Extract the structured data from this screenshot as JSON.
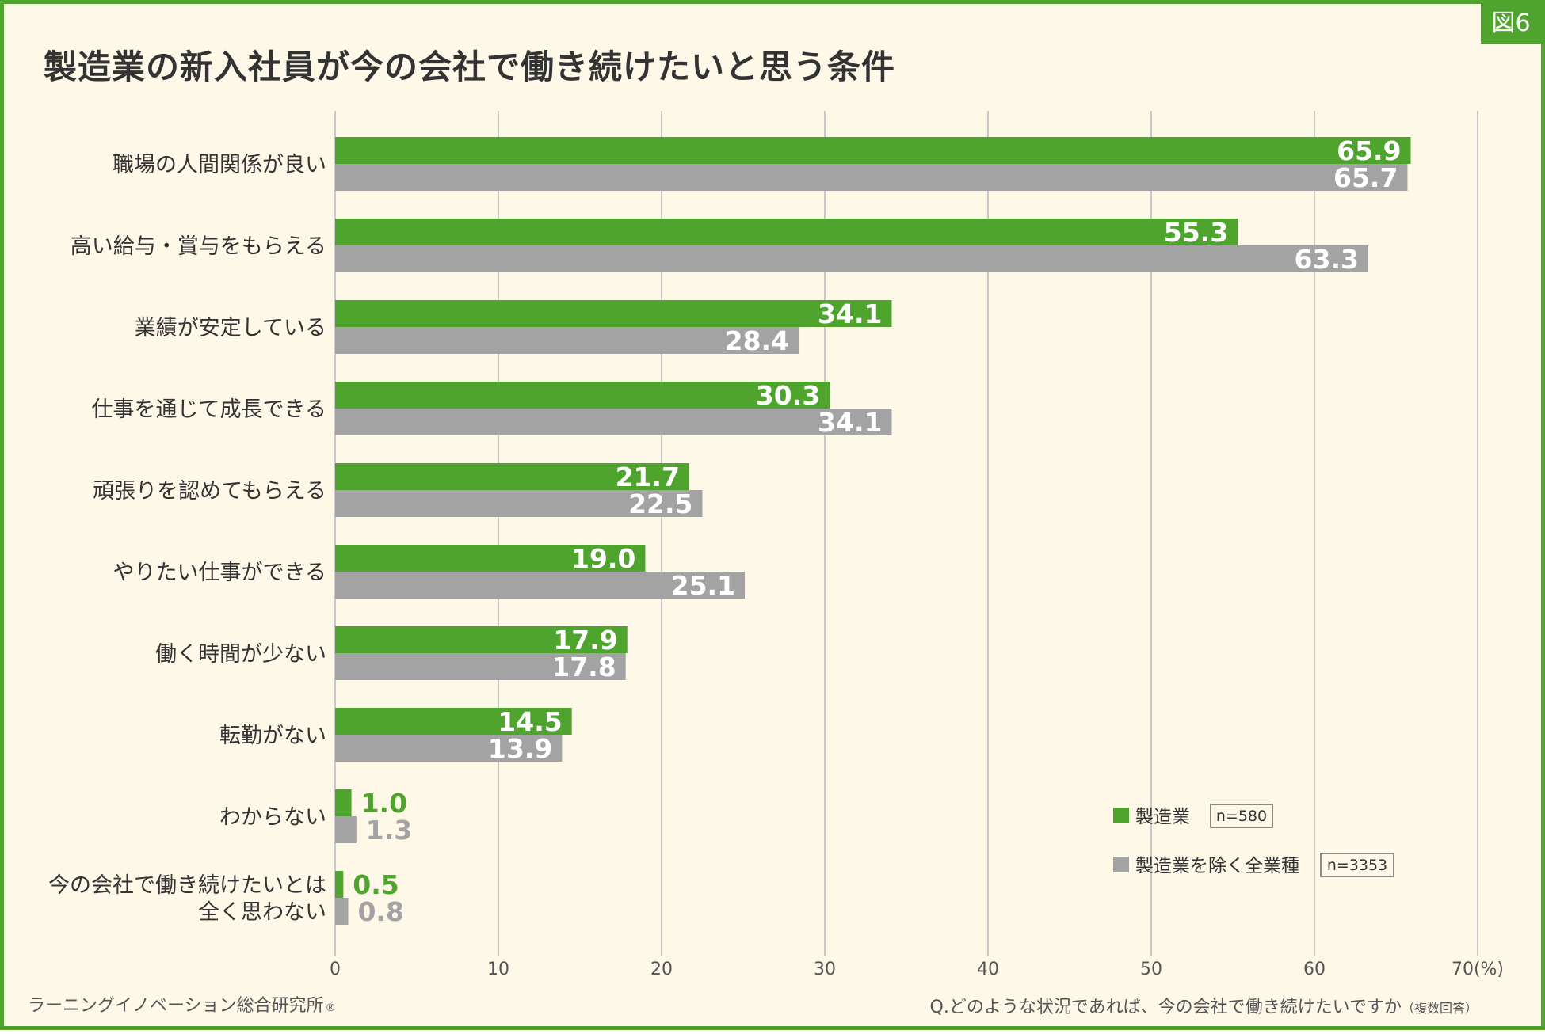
{
  "badge": "図6",
  "title": "製造業の新入社員が今の会社で働き続けたいと思う条件",
  "footer": {
    "source": "ラーニングイノベーション総合研究所",
    "registered": "®",
    "question": "Q.どのような状況であれば、今の会社で働き続けたいですか",
    "note": "（複数回答）"
  },
  "colors": {
    "manufacturing": "#4fa42e",
    "others": "#a3a3a3",
    "grid": "#c8c8c8",
    "frame": "#4fa42e"
  },
  "chart_data": {
    "type": "bar",
    "orientation": "horizontal",
    "categories": [
      [
        "職場の人間関係が良い"
      ],
      [
        "高い給与・賞与をもらえる"
      ],
      [
        "業績が安定している"
      ],
      [
        "仕事を通じて成長できる"
      ],
      [
        "頑張りを認めてもらえる"
      ],
      [
        "やりたい仕事ができる"
      ],
      [
        "働く時間が少ない"
      ],
      [
        "転勤がない"
      ],
      [
        "わからない"
      ],
      [
        "今の会社で働き続けたいとは",
        "全く思わない"
      ]
    ],
    "series": [
      {
        "name": "製造業",
        "n": "n=580",
        "values": [
          65.9,
          55.3,
          34.1,
          30.3,
          21.7,
          19.0,
          17.9,
          14.5,
          1.0,
          0.5
        ],
        "labels": [
          "65.9",
          "55.3",
          "34.1",
          "30.3",
          "21.7",
          "19.0",
          "17.9",
          "14.5",
          "1.0",
          "0.5"
        ]
      },
      {
        "name": "製造業を除く全業種",
        "n": "n=3353",
        "values": [
          65.7,
          63.3,
          28.4,
          34.1,
          22.5,
          25.1,
          17.8,
          13.9,
          1.3,
          0.8
        ],
        "labels": [
          "65.7",
          "63.3",
          "28.4",
          "34.1",
          "22.5",
          "25.1",
          "17.8",
          "13.9",
          "1.3",
          "0.8"
        ]
      }
    ],
    "x_ticks": [
      "0",
      "10",
      "20",
      "30",
      "40",
      "50",
      "60",
      "70"
    ],
    "x_unit": "(%)",
    "xlim": [
      0,
      70
    ],
    "grid": true,
    "legend_position": "bottom-right"
  }
}
